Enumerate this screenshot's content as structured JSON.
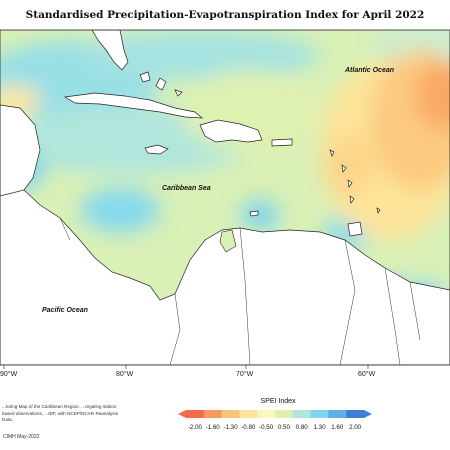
{
  "title": "Standardised Precipitation-Evapotranspiration Index for April 2022",
  "labels": {
    "atlantic": "Atlantic Ocean",
    "caribbean": "Caribbean Sea",
    "pacific": "Pacific Ocean"
  },
  "longitude_labels": [
    "90°W",
    "80°W",
    "70°W",
    "60°W"
  ],
  "legend": {
    "title": "SPEI Index",
    "ticks": [
      "-2.00",
      "-1.60",
      "-1.30",
      "-0.80",
      "-0.50",
      "0.50",
      "0.80",
      "1.30",
      "1.60",
      "2.00"
    ],
    "colors": [
      "#f26b4f",
      "#f89a5c",
      "#fbc47a",
      "#fde49a",
      "#fdf6c0",
      "#dff1b0",
      "#b2e6d8",
      "#7fd4ee",
      "#5fb0e8",
      "#3f7fd8"
    ]
  },
  "notes": "...toring Map of the Caribbean Region. ...regating station based observations, ...IDF, with NCEP/NCAR Reanalysis Data.",
  "credit": "CIMH May-2022"
}
